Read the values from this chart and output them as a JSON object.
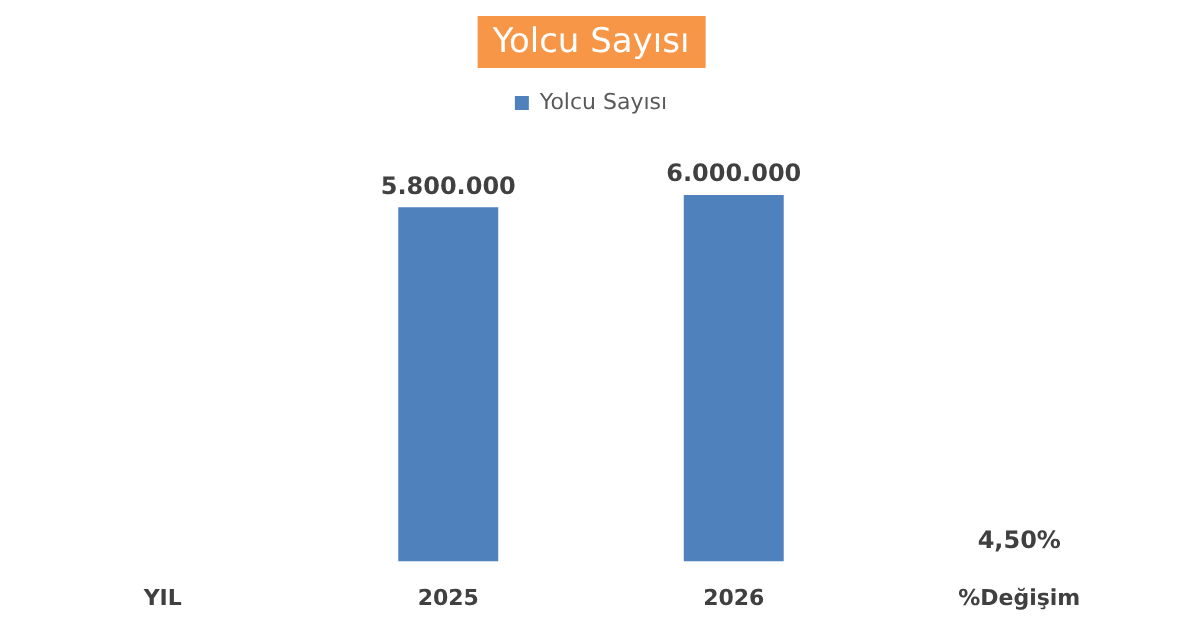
{
  "chart_data": {
    "type": "bar",
    "title": "Yolcu Sayısı",
    "categories": [
      "YIL",
      "2025",
      "2026",
      "%Değişim"
    ],
    "series": [
      {
        "name": "Yolcu Sayısı",
        "color": "#4f81bd",
        "values": [
          null,
          5800000,
          6000000,
          4.5
        ],
        "value_labels": [
          null,
          "5.800.000",
          "6.000.000",
          "4,50%"
        ]
      }
    ],
    "legend": "top",
    "grid": false
  }
}
